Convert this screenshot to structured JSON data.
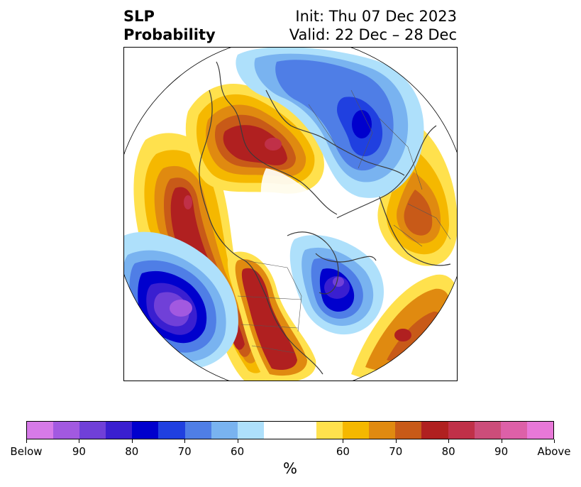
{
  "title": {
    "left_line1": "SLP",
    "left_line2": "Probability",
    "right_line1": "Init: Thu 07 Dec 2023",
    "right_line2": "Valid: 22 Dec – 28 Dec"
  },
  "colorbar": {
    "units": "%",
    "below_colors": [
      "#d67ae8",
      "#a259e0",
      "#7040d8",
      "#3a1fd0",
      "#0000cd",
      "#2040e0",
      "#4f7ee6",
      "#79b3f0",
      "#aee0fb"
    ],
    "neutral_color": "#ffffff",
    "above_colors": [
      "#ffe14d",
      "#f5b800",
      "#e08a10",
      "#c85a18",
      "#b02020",
      "#c03048",
      "#cc4d7a",
      "#dd60a8",
      "#e878d8"
    ],
    "tick_labels": [
      "Below",
      "90",
      "80",
      "70",
      "60",
      "60",
      "70",
      "80",
      "90",
      "Above"
    ]
  },
  "legend_categories": [
    "Below",
    "Above"
  ]
}
